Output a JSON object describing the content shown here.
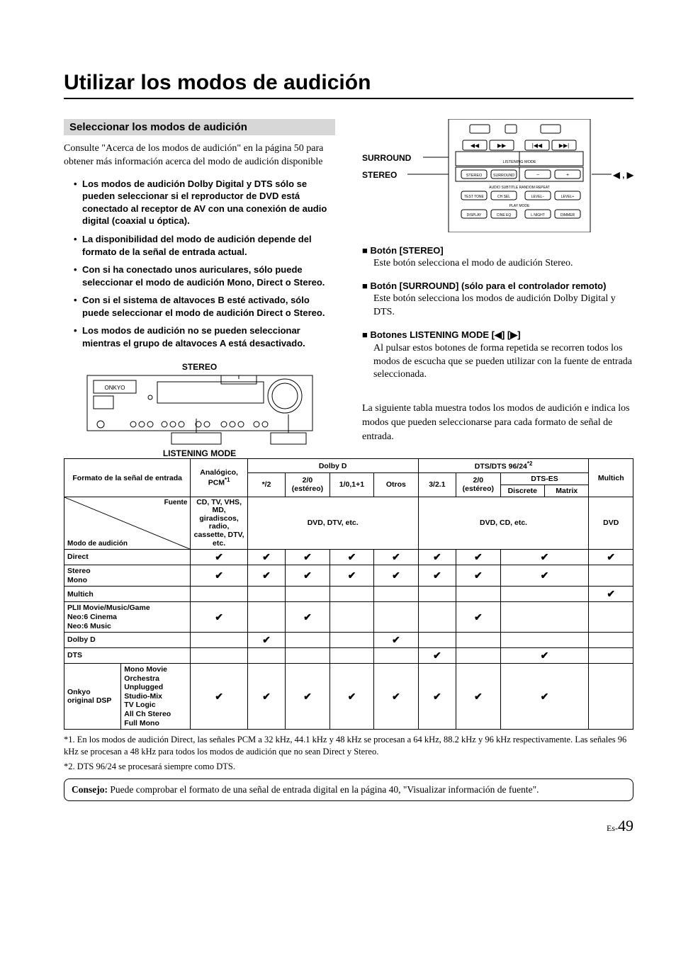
{
  "title": "Utilizar los modos de audición",
  "sectionHeader": "Seleccionar los modos de audición",
  "intro": "Consulte \"Acerca de los modos de audición\" en la página 50 para obtener más información acerca del modo de audición disponible",
  "bullets": [
    "Los modos de audición Dolby Digital y DTS sólo se pueden seleccionar si el reproductor de DVD está conectado al receptor de AV con una conexión de audio digital (coaxial u óptica).",
    "La disponibilidad del modo de audición depende del formato de la señal de entrada actual.",
    "Con si ha conectado unos auriculares, sólo puede seleccionar el modo de audición Mono, Direct o Stereo.",
    "Con si el sistema de altavoces B esté activado, sólo puede seleccionar el modo de audición Direct o Stereo.",
    "Los modos de audición no se pueden seleccionar mientras el grupo de altavoces A está desactivado."
  ],
  "receiver": {
    "topLabel": "STEREO",
    "bottomLabel": "LISTENING MODE"
  },
  "remote": {
    "surroundLabel": "SURROUND",
    "stereoLabel": "STEREO",
    "arrowsLabel": "◀ , ▶",
    "rowListening": "LISTENING MODE",
    "rowAudio": "AUDIO  SUBTITLE RANDOM  REPEAT",
    "rowPlay": "PLAY MODE",
    "btns": {
      "stereo": "STEREO",
      "surround": "SURROUND",
      "left": "−",
      "right": "+",
      "testtone": "TEST TONE",
      "chsel": "CH SEL",
      "levm": "LEVEL−",
      "levp": "LEVEL+",
      "display": "DISPLAY",
      "cineq": "CINE EQ",
      "lnight": "L NIGHT",
      "dimmer": "DIMMER"
    }
  },
  "buttons": [
    {
      "title": "Botón [STEREO]",
      "body": "Este botón selecciona el modo de audición Stereo."
    },
    {
      "title": "Botón [SURROUND] (sólo para el controlador remoto)",
      "body": "Este botón selecciona los modos de audición Dolby Digital y DTS."
    },
    {
      "title": "Botones LISTENING MODE [◀] [▶]",
      "body": "Al pulsar estos botones de forma repetida se recorren todos los modos de escucha que se pueden utilizar con la fuente de entrada seleccionada."
    }
  ],
  "tableIntro": "La siguiente tabla muestra todos los modos de audición e indica los modos que pueden seleccionarse para cada formato de señal de entrada.",
  "table": {
    "hdrFormato": "Formato de la señal de entrada",
    "hdrAnalogico": "Analógico, PCM",
    "hdrAnalogicoSup": "*1",
    "hdrDolby": "Dolby D",
    "hdrDts": "DTS/DTS 96/24",
    "hdrDtsSup": "*2",
    "hdrMultich": "Multich",
    "sub": {
      "s2": "*/2",
      "s20": "2/0\n(estéreo)",
      "s10": "1/0,1+1",
      "otros": "Otros",
      "d321": "3/2.1",
      "d20": "2/0\n(estéreo)",
      "dtses": "DTS-ES",
      "discrete": "Discrete",
      "matrix": "Matrix"
    },
    "fuente": "Fuente",
    "modo": "Modo de audición",
    "srcAnalog": "CD, TV, VHS, MD, giradiscos, radio, cassette, DTV, etc.",
    "srcDolby": "DVD, DTV, etc.",
    "srcDts": "DVD, CD, etc.",
    "srcMultich": "DVD",
    "rows": [
      {
        "label": "Direct",
        "cells": [
          "✔",
          "✔",
          "✔",
          "✔",
          "✔",
          "✔",
          "✔",
          "✔",
          "✔"
        ]
      },
      {
        "label": "Stereo\nMono",
        "cells": [
          "✔",
          "✔",
          "✔",
          "✔",
          "✔",
          "✔",
          "✔",
          "✔",
          ""
        ]
      },
      {
        "label": "Multich",
        "cells": [
          "",
          "",
          "",
          "",
          "",
          "",
          "",
          "",
          "✔"
        ]
      },
      {
        "label": "PLII Movie/Music/Game\nNeo:6 Cinema\nNeo:6 Music",
        "cells": [
          "✔",
          "",
          "✔",
          "",
          "",
          "",
          "✔",
          "",
          ""
        ]
      },
      {
        "label": "Dolby D",
        "cells": [
          "",
          "✔",
          "",
          "",
          "✔",
          "",
          "",
          "",
          ""
        ]
      },
      {
        "label": "DTS",
        "cells": [
          "",
          "",
          "",
          "",
          "",
          "✔",
          "",
          "✔",
          ""
        ]
      }
    ],
    "dspRow": {
      "leftA": "Onkyo original DSP",
      "leftB": "Mono Movie\nOrchestra\nUnplugged\nStudio-Mix\nTV Logic\nAll Ch Stereo\nFull Mono",
      "cells": [
        "✔",
        "✔",
        "✔",
        "✔",
        "✔",
        "✔",
        "✔",
        "✔",
        ""
      ]
    }
  },
  "footnotes": [
    "*1. En los modos de audición Direct, las señales PCM a 32 kHz, 44.1 kHz y 48 kHz se procesan a 64 kHz, 88.2 kHz y 96 kHz respectivamente. Las señales 96 kHz se procesan a 48 kHz para todos los modos de audición que no sean Direct y Stereo.",
    "*2. DTS 96/24 se procesará siempre como DTS."
  ],
  "tip": {
    "lead": "Consejo:",
    "body": " Puede comprobar el formato de una señal de entrada digital en la página 40, \"Visualizar información de fuente\"."
  },
  "page": {
    "prefix": "Es-",
    "num": "49"
  }
}
